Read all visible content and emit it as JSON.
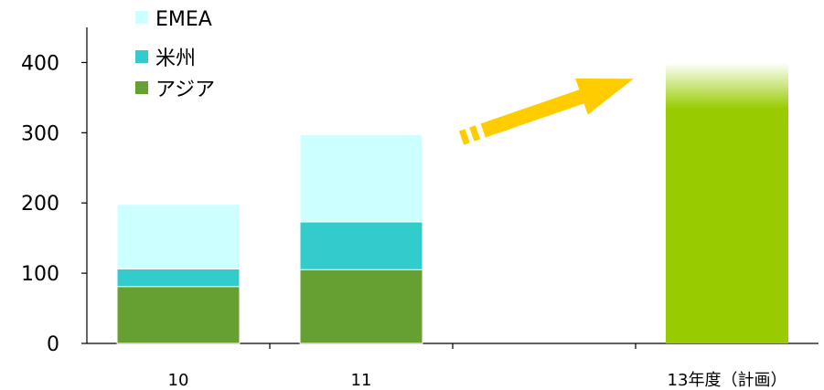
{
  "chart_data": {
    "type": "bar",
    "stacked": true,
    "categories": [
      "10",
      "11",
      "13年度（計画）"
    ],
    "series": [
      {
        "name": "アジア",
        "color": "#66a032",
        "values": [
          81,
          105,
          null
        ]
      },
      {
        "name": "米州",
        "color": "#33cccc",
        "values": [
          25,
          68,
          null
        ]
      },
      {
        "name": "EMEA",
        "color": "#ccffff",
        "values": [
          92,
          124,
          null
        ]
      }
    ],
    "plan": {
      "category": "13年度（計画）",
      "value": 400,
      "color": "#99cc00",
      "fade_from": 335
    },
    "ylim": [
      0,
      450
    ],
    "yticks": [
      0,
      100,
      200,
      300,
      400
    ],
    "legend": [
      "EMEA",
      "米州",
      "アジア"
    ],
    "legend_position": "top-left",
    "grid": false,
    "annotation": "growth-arrow"
  }
}
